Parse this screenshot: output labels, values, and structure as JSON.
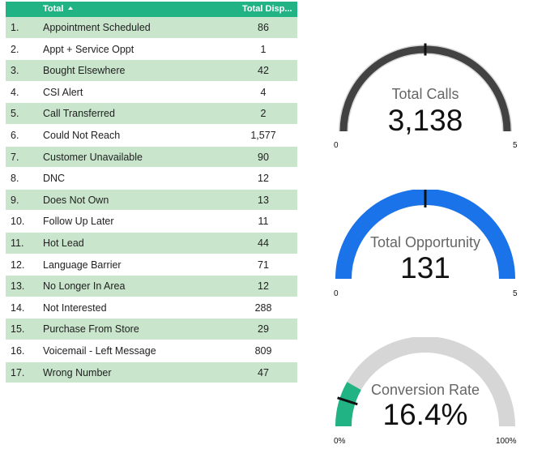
{
  "table": {
    "headers": {
      "total": "Total",
      "dispositions": "Total Disp..."
    },
    "rows": [
      {
        "index": "1.",
        "label": "Appointment Scheduled",
        "value": "86"
      },
      {
        "index": "2.",
        "label": "Appt + Service Oppt",
        "value": "1"
      },
      {
        "index": "3.",
        "label": "Bought Elsewhere",
        "value": "42"
      },
      {
        "index": "4.",
        "label": "CSI Alert",
        "value": "4"
      },
      {
        "index": "5.",
        "label": "Call Transferred",
        "value": "2"
      },
      {
        "index": "6.",
        "label": "Could Not Reach",
        "value": "1,577"
      },
      {
        "index": "7.",
        "label": "Customer Unavailable",
        "value": "90"
      },
      {
        "index": "8.",
        "label": "DNC",
        "value": "12"
      },
      {
        "index": "9.",
        "label": "Does Not Own",
        "value": "13"
      },
      {
        "index": "10.",
        "label": "Follow Up Later",
        "value": "11"
      },
      {
        "index": "11.",
        "label": "Hot Lead",
        "value": "44"
      },
      {
        "index": "12.",
        "label": "Language Barrier",
        "value": "71"
      },
      {
        "index": "13.",
        "label": "No Longer In Area",
        "value": "12"
      },
      {
        "index": "14.",
        "label": "Not Interested",
        "value": "288"
      },
      {
        "index": "15.",
        "label": "Purchase From Store",
        "value": "29"
      },
      {
        "index": "16.",
        "label": "Voicemail - Left Message",
        "value": "809"
      },
      {
        "index": "17.",
        "label": "Wrong Number",
        "value": "47"
      }
    ]
  },
  "gauges": [
    {
      "title": "Total Calls",
      "value": "3,138",
      "min": "0",
      "max": "5",
      "fill_fraction": 1.0,
      "target_fraction": 0.5,
      "color": "#424242",
      "track_color": "#d6d6d6"
    },
    {
      "title": "Total Opportunity",
      "value": "131",
      "min": "0",
      "max": "5",
      "fill_fraction": 1.0,
      "target_fraction": 0.5,
      "color": "#1a73e8",
      "track_color": "#d6d6d6"
    },
    {
      "title": "Conversion Rate",
      "value": "16.4%",
      "min": "0%",
      "max": "100%",
      "fill_fraction": 0.164,
      "target_fraction": 0.1,
      "color": "#21b384",
      "track_color": "#d6d6d6"
    }
  ]
}
